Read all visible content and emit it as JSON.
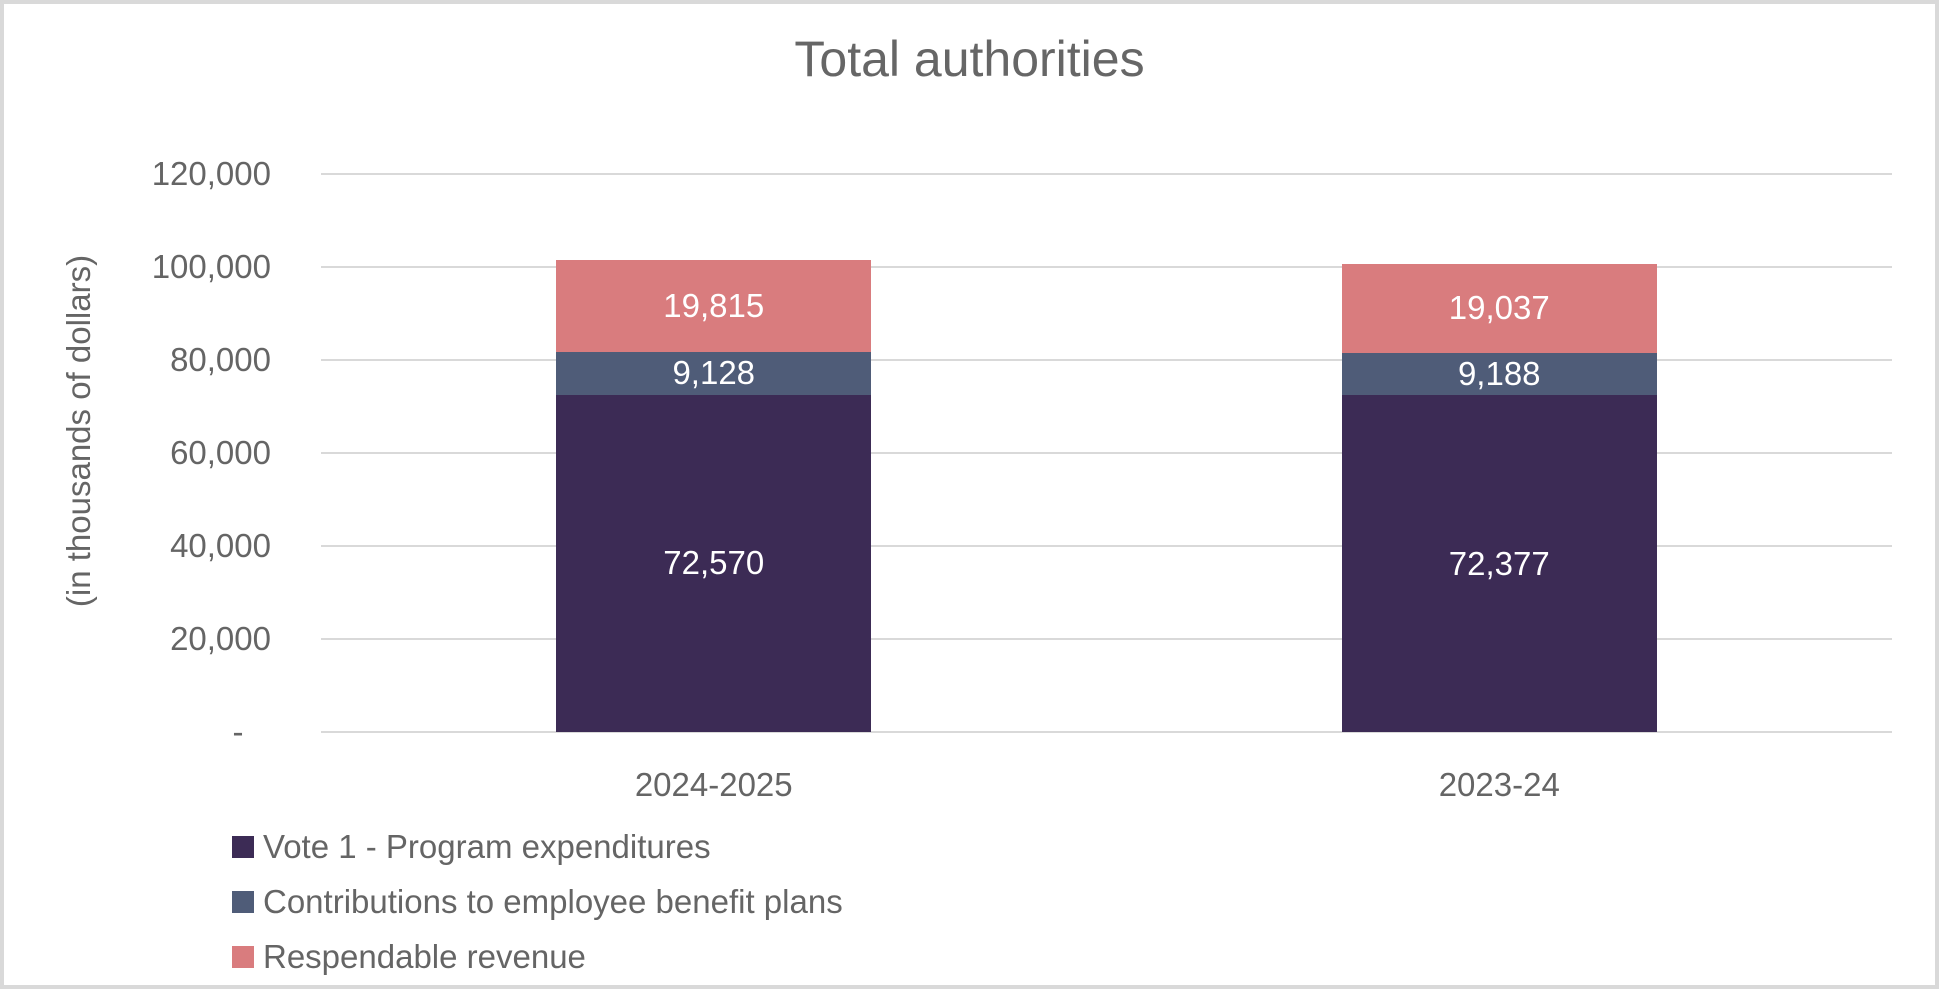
{
  "chart_data": {
    "type": "bar",
    "stacked": true,
    "title": "Total authorities",
    "ylabel": "(in thousands of dollars)",
    "xlabel": "",
    "categories": [
      "2024-2025",
      "2023-24"
    ],
    "series": [
      {
        "name": "Vote 1 - Program expenditures",
        "color": "#3C2B55",
        "values": [
          72570,
          72377
        ],
        "data_labels": [
          "72,570",
          "72,377"
        ]
      },
      {
        "name": "Contributions to employee benefit plans",
        "color": "#4F5C78",
        "values": [
          9128,
          9188
        ],
        "data_labels": [
          "9,128",
          "9,188"
        ]
      },
      {
        "name": "Respendable revenue",
        "color": "#D97C7E",
        "values": [
          19815,
          19037
        ],
        "data_labels": [
          "19,815",
          "19,037"
        ]
      }
    ],
    "totals": [
      101513,
      100602
    ],
    "y_axis": {
      "min": 0,
      "max": 120000,
      "step": 20000,
      "tick_labels": [
        "120,000",
        "100,000",
        "80,000",
        "60,000",
        "40,000",
        "20,000",
        "-   "
      ]
    },
    "grid": true,
    "legend_position": "bottom-left",
    "colors": {
      "gridline": "#d9d9d9",
      "border": "#d9d9d9",
      "axis_text": "#656565",
      "title_text": "#666666",
      "data_label_text": "#ffffff"
    }
  }
}
